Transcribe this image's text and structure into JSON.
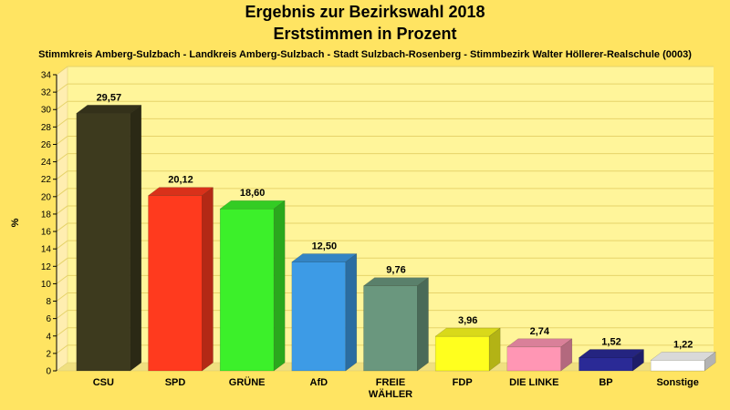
{
  "title_line1": "Ergebnis zur Bezirkswahl 2018",
  "title_line2": "Erststimmen in Prozent",
  "subtitle": "Stimmkreis Amberg-Sulzbach - Landkreis Amberg-Sulzbach - Stadt Sulzbach-Rosenberg - Stimmbezirk Walter Höllerer-Realschule (0003)",
  "chart_data": {
    "type": "bar",
    "title": "Ergebnis zur Bezirkswahl 2018",
    "subtitle": "Erststimmen in Prozent",
    "ylabel": "%",
    "xlabel": "",
    "ylim": [
      0,
      34
    ],
    "yticks": [
      0,
      2,
      4,
      6,
      8,
      10,
      12,
      14,
      16,
      18,
      20,
      22,
      24,
      26,
      28,
      30,
      32,
      34
    ],
    "grid": true,
    "categories": [
      "CSU",
      "SPD",
      "GRÜNE",
      "AfD",
      "FREIE WÄHLER",
      "FDP",
      "DIE LINKE",
      "BP",
      "Sonstige"
    ],
    "category_lines": [
      [
        "CSU"
      ],
      [
        "SPD"
      ],
      [
        "GRÜNE"
      ],
      [
        "AfD"
      ],
      [
        "FREIE",
        "WÄHLER"
      ],
      [
        "FDP"
      ],
      [
        "DIE LINKE"
      ],
      [
        "BP"
      ],
      [
        "Sonstige"
      ]
    ],
    "values": [
      29.57,
      20.12,
      18.6,
      12.5,
      9.76,
      3.96,
      2.74,
      1.52,
      1.22
    ],
    "value_labels": [
      "29,57",
      "20,12",
      "18,60",
      "12,50",
      "9,76",
      "3,96",
      "2,74",
      "1,52",
      "1,22"
    ],
    "colors": [
      "#3d3a1e",
      "#ff3a1e",
      "#3cf02a",
      "#3d9be6",
      "#6a977e",
      "#ffff1e",
      "#ff96b4",
      "#2a2a96",
      "#ffffff"
    ]
  }
}
